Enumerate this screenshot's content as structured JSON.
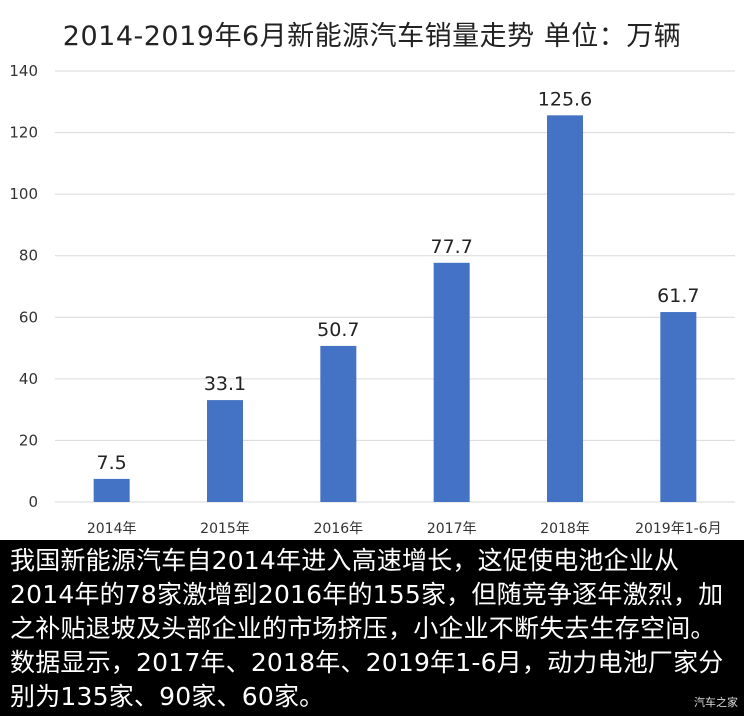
{
  "chart_data": {
    "type": "bar",
    "title": "2014-2019年6月新能源汽车销量走势 单位：万辆",
    "categories": [
      "2014年",
      "2015年",
      "2016年",
      "2017年",
      "2018年",
      "2019年1-6月"
    ],
    "values": [
      7.5,
      33.1,
      50.7,
      77.7,
      125.6,
      61.7
    ],
    "value_labels": [
      "7.5",
      "33.1",
      "50.7",
      "77.7",
      "125.6",
      "61.7"
    ],
    "yticks": [
      "0",
      "20",
      "40",
      "60",
      "80",
      "100",
      "120",
      "140"
    ],
    "ylim": [
      0,
      140
    ],
    "grid": true,
    "bar_color": "#4472C4"
  },
  "caption": "我国新能源汽车自2014年进入高速增长，这促使电池企业从2014年的78家激增到2016年的155家，但随竞争逐年激烈，加之补贴退坡及头部企业的市场挤压，小企业不断失去生存空间。数据显示，2017年、2018年、2019年1-6月，动力电池厂家分别为135家、90家、60家。",
  "watermark": "汽车之家"
}
